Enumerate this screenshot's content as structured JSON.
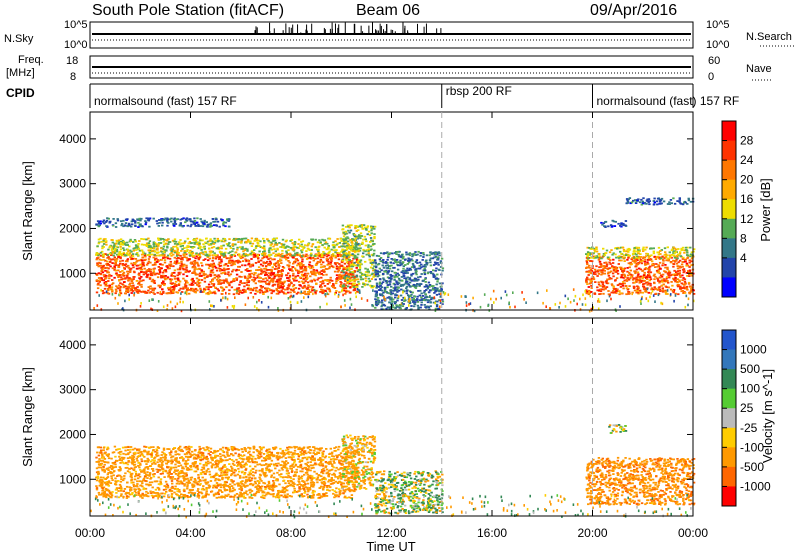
{
  "header": {
    "station": "South Pole Station (fitACF)",
    "beam": "Beam 06",
    "date": "09/Apr/2016"
  },
  "strip": {
    "nsky_label": "N.Sky",
    "nsky_ticks": [
      "10^5",
      "10^0"
    ],
    "nsearch_label": "N.Search",
    "nsearch_ticks": [
      "10^5",
      "10^0"
    ],
    "freq_label_line1": "Freq.",
    "freq_label_line2": "[MHz]",
    "freq_ticks": [
      "18",
      "8"
    ],
    "nave_label": "Nave",
    "nave_ticks": [
      "60",
      "0"
    ],
    "cpid_label": "CPID"
  },
  "cpid_segments": [
    {
      "label": "normalsound (fast) 157 RF",
      "start_hour": 0,
      "end_hour": 14
    },
    {
      "label": "rbsp 200 RF",
      "start_hour": 14,
      "end_hour": 20
    },
    {
      "label": "normalsound (fast) 157 RF",
      "start_hour": 20,
      "end_hour": 24
    }
  ],
  "axes": {
    "x_label": "Time UT",
    "x_ticks": [
      "00:00",
      "04:00",
      "08:00",
      "12:00",
      "16:00",
      "20:00",
      "00:00"
    ],
    "xlim_hours": [
      0,
      24
    ],
    "y_label": "Slant Range [km]",
    "y_ticks": [
      "1000",
      "2000",
      "3000",
      "4000"
    ],
    "ylim_km": [
      180,
      4600
    ]
  },
  "colorbars": {
    "power": {
      "label": "Power [dB]",
      "ticks": [
        "28",
        "24",
        "20",
        "16",
        "12",
        "8",
        "4"
      ],
      "colors": [
        "#ff0000",
        "#ff3300",
        "#ff7700",
        "#ffaa00",
        "#eedd00",
        "#55aa55",
        "#337788",
        "#2244aa",
        "#0000ff"
      ]
    },
    "velocity": {
      "label": "Velocity [m s^-1]",
      "ticks": [
        "1000",
        "500",
        "100",
        "25",
        "-25",
        "-100",
        "-500",
        "-1000"
      ],
      "colors": [
        "#2255cc",
        "#3377bb",
        "#338855",
        "#55cc33",
        "#bbbbbb",
        "#ffcc00",
        "#ff9900",
        "#ff6600",
        "#ff0000"
      ]
    }
  },
  "chart_data": [
    {
      "type": "heatmap",
      "title": "Power",
      "xlabel": "Time UT",
      "ylabel": "Slant Range [km]",
      "xlim": [
        0,
        24
      ],
      "ylim": [
        180,
        4600
      ],
      "colorbar_label": "Power [dB]",
      "regions": [
        {
          "t0": 0.2,
          "t1": 10.6,
          "r0": 550,
          "r1": 1450,
          "value_db": 26
        },
        {
          "t0": 0.2,
          "t1": 10.6,
          "r0": 1400,
          "r1": 1800,
          "value_db": 15
        },
        {
          "t0": 10.0,
          "t1": 11.3,
          "r0": 700,
          "r1": 2100,
          "value_db": 14
        },
        {
          "t0": 11.3,
          "t1": 14.0,
          "r0": 200,
          "r1": 1500,
          "value_db": 7
        },
        {
          "t0": 19.7,
          "t1": 24.0,
          "r0": 550,
          "r1": 1400,
          "value_db": 26
        },
        {
          "t0": 19.7,
          "t1": 24.0,
          "r0": 1350,
          "r1": 1600,
          "value_db": 15
        },
        {
          "t0": 0.2,
          "t1": 5.5,
          "r0": 2050,
          "r1": 2250,
          "value_db": 6
        },
        {
          "t0": 20.3,
          "t1": 21.3,
          "r0": 2050,
          "r1": 2200,
          "value_db": 5
        },
        {
          "t0": 21.3,
          "t1": 24.0,
          "r0": 2550,
          "r1": 2700,
          "value_db": 6
        }
      ]
    },
    {
      "type": "heatmap",
      "title": "Velocity",
      "xlabel": "Time UT",
      "ylabel": "Slant Range [km]",
      "xlim": [
        0,
        24
      ],
      "ylim": [
        180,
        4600
      ],
      "colorbar_label": "Velocity [m s^-1]",
      "regions": [
        {
          "t0": 0.2,
          "t1": 10.6,
          "r0": 600,
          "r1": 1750,
          "value_ms": -300
        },
        {
          "t0": 10.0,
          "t1": 11.3,
          "r0": 800,
          "r1": 2000,
          "value_ms": -150
        },
        {
          "t0": 11.3,
          "t1": 14.0,
          "r0": 250,
          "r1": 1200,
          "value_ms": 50
        },
        {
          "t0": 19.7,
          "t1": 24.0,
          "r0": 450,
          "r1": 1500,
          "value_ms": -400
        },
        {
          "t0": 20.6,
          "t1": 21.3,
          "r0": 2050,
          "r1": 2250,
          "value_ms": 0
        }
      ]
    }
  ]
}
